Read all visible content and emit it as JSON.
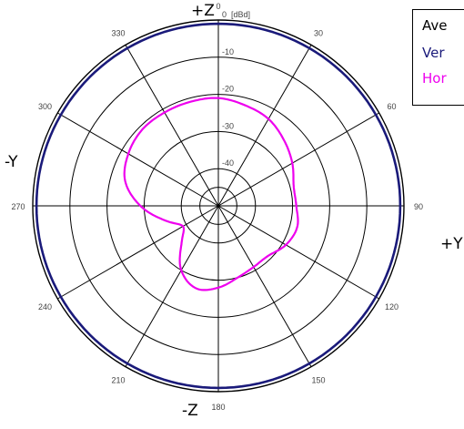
{
  "chart_data": {
    "type": "polar",
    "unit_label": "[dBd]",
    "radial_ticks": [
      {
        "value": 0,
        "label": "0"
      },
      {
        "value": -10,
        "label": "-10"
      },
      {
        "value": -20,
        "label": "-20"
      },
      {
        "value": -30,
        "label": "-30"
      },
      {
        "value": -40,
        "label": "-40"
      }
    ],
    "rlim": [
      -50,
      0
    ],
    "angle_ticks": [
      "0",
      "30",
      "60",
      "90",
      "120",
      "150",
      "180",
      "210",
      "240",
      "270",
      "300",
      "330"
    ],
    "direction_labels": {
      "top": "+Z",
      "bottom": "-Z",
      "left": "-Y",
      "right": "+Y"
    },
    "legend": [
      "Ave",
      "Ver",
      "Hor"
    ],
    "series": [
      {
        "name": "Vertical",
        "color": "#1a1a7a",
        "angles": [
          0,
          30,
          60,
          90,
          120,
          150,
          180,
          210,
          240,
          270,
          300,
          330,
          360
        ],
        "values": [
          -1,
          -1,
          -1,
          -1,
          -1,
          -1,
          -1,
          -1,
          -1,
          -1,
          -1,
          -1,
          -1
        ]
      },
      {
        "name": "Horizontal",
        "color": "#ee00ee",
        "angles": [
          0,
          15,
          30,
          45,
          60,
          75,
          90,
          105,
          120,
          135,
          150,
          165,
          180,
          195,
          210,
          225,
          240,
          255,
          270,
          285,
          300,
          315,
          330,
          345,
          360
        ],
        "values": [
          -21,
          -22,
          -23,
          -25,
          -27,
          -29,
          -29,
          -28,
          -29,
          -31,
          -31,
          -30,
          -28,
          -27,
          -30,
          -36,
          -39,
          -35,
          -29,
          -24,
          -22,
          -21,
          -21,
          -21,
          -21
        ]
      }
    ],
    "grid": true
  }
}
